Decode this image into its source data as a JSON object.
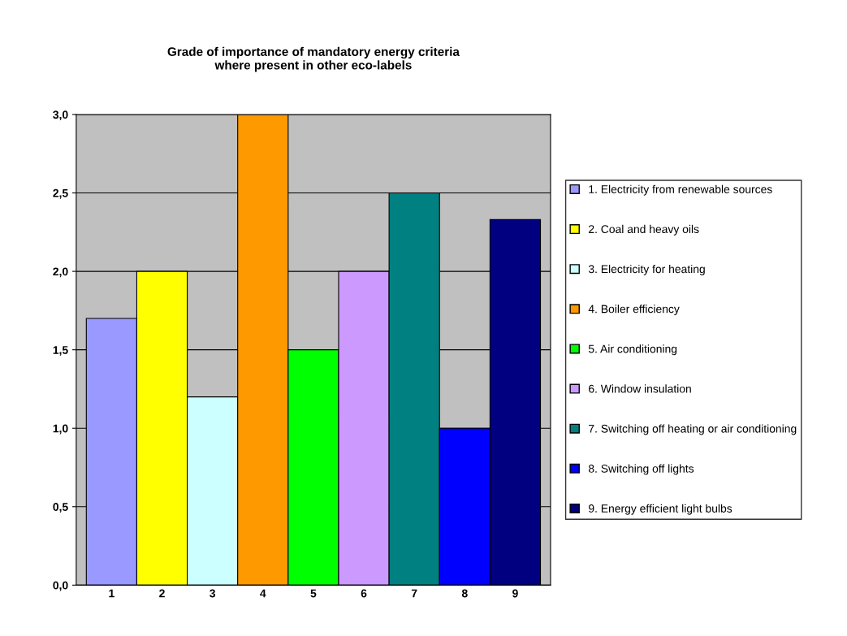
{
  "chart_data": {
    "type": "bar",
    "title": "Grade of importance of mandatory energy criteria\nwhere present in other eco-labels",
    "categories": [
      "1",
      "2",
      "3",
      "4",
      "5",
      "6",
      "7",
      "8",
      "9"
    ],
    "series": [
      {
        "name": "1. Electricity from renewable sources",
        "color": "#9999ff",
        "values": [
          1.7,
          null,
          null,
          null,
          null,
          null,
          null,
          null,
          null
        ]
      },
      {
        "name": "2. Coal and heavy oils",
        "color": "#ffff00",
        "values": [
          null,
          2.0,
          null,
          null,
          null,
          null,
          null,
          null,
          null
        ]
      },
      {
        "name": "3. Electricity for heating",
        "color": "#ccffff",
        "values": [
          null,
          null,
          1.2,
          null,
          null,
          null,
          null,
          null,
          null
        ]
      },
      {
        "name": "4. Boiler efficiency",
        "color": "#ff9900",
        "values": [
          null,
          null,
          null,
          3.0,
          null,
          null,
          null,
          null,
          null
        ]
      },
      {
        "name": "5. Air conditioning",
        "color": "#00ff00",
        "values": [
          null,
          null,
          null,
          null,
          1.5,
          null,
          null,
          null,
          null
        ]
      },
      {
        "name": "6. Window insulation",
        "color": "#cc99ff",
        "values": [
          null,
          null,
          null,
          null,
          null,
          2.0,
          null,
          null,
          null
        ]
      },
      {
        "name": "7. Switching off heating or air conditioning",
        "color": "#008080",
        "values": [
          null,
          null,
          null,
          null,
          null,
          null,
          2.5,
          null,
          null
        ]
      },
      {
        "name": "8. Switching off lights",
        "color": "#0000ff",
        "values": [
          null,
          null,
          null,
          null,
          null,
          null,
          null,
          1.0,
          null
        ]
      },
      {
        "name": "9. Energy efficient light bulbs",
        "color": "#000080",
        "values": [
          null,
          null,
          null,
          null,
          null,
          null,
          null,
          null,
          2.33
        ]
      }
    ],
    "ylim": [
      0,
      3.0
    ],
    "yticks": [
      {
        "value": 0,
        "label": "0,0"
      },
      {
        "value": 0.5,
        "label": "0,5"
      },
      {
        "value": 1.0,
        "label": "1,0"
      },
      {
        "value": 1.5,
        "label": "1,5"
      },
      {
        "value": 2.0,
        "label": "2,0"
      },
      {
        "value": 2.5,
        "label": "2,5"
      },
      {
        "value": 3.0,
        "label": "3,0"
      }
    ],
    "grid": "y",
    "legend": "right"
  }
}
